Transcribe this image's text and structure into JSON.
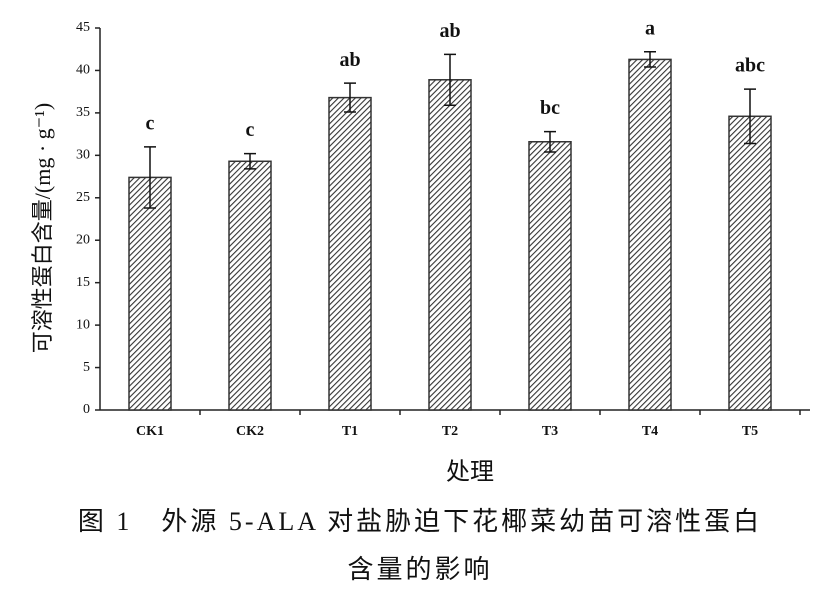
{
  "chart_data": {
    "type": "bar",
    "y_label": "可溶性蛋白含量/(mg · g⁻¹)",
    "x_label": "处理",
    "caption": [
      "图 1　外源 5-ALA 对盐胁迫下花椰菜幼苗可溶性蛋白",
      "含量的影响"
    ],
    "categories": [
      "CK1",
      "CK2",
      "T1",
      "T2",
      "T3",
      "T4",
      "T5"
    ],
    "values": [
      27.4,
      29.3,
      36.8,
      38.9,
      31.6,
      41.3,
      34.6
    ],
    "errors": [
      3.6,
      0.9,
      1.7,
      3.0,
      1.2,
      0.9,
      3.2
    ],
    "value_labels": [
      "c",
      "c",
      "ab",
      "ab",
      "bc",
      "a",
      "abc"
    ],
    "color": "#333333",
    "ylim": [
      0,
      45
    ],
    "yticks": [
      0,
      5,
      10,
      15,
      20,
      25,
      30,
      35,
      40,
      45
    ],
    "grid": false
  }
}
